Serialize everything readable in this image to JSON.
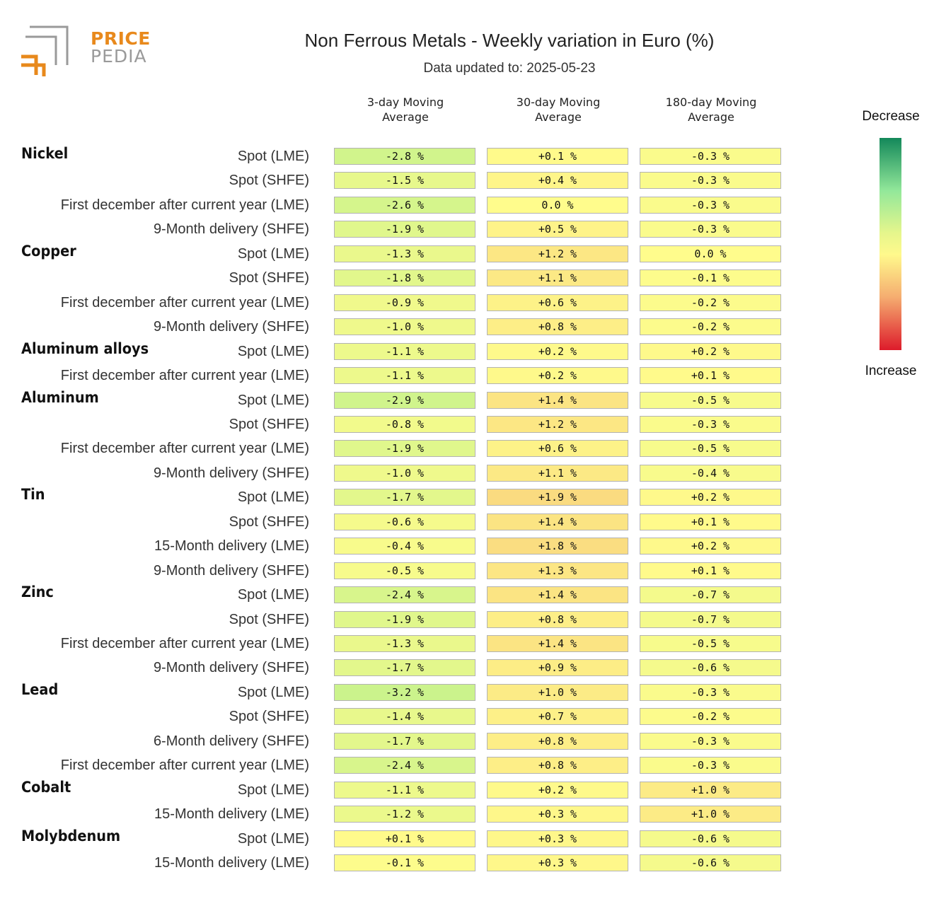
{
  "logo": {
    "line1": "PRICE",
    "line2": "PEDIA",
    "accent": "#e8891c",
    "gray": "#9a9a9a"
  },
  "title": "Non Ferrous Metals - Weekly variation in Euro (%)",
  "subtitle": "Data updated to: 2025-05-23",
  "legend": {
    "top": "Decrease",
    "bottom": "Increase"
  },
  "chart_data": {
    "type": "heatmap",
    "title": "Non Ferrous Metals - Weekly variation in Euro (%)",
    "columns": [
      "3-day Moving Average",
      "30-day Moving Average",
      "180-day Moving Average"
    ],
    "column_lines": [
      [
        "3-day Moving",
        "Average"
      ],
      [
        "30-day Moving",
        "Average"
      ],
      [
        "180-day Moving",
        "Average"
      ]
    ],
    "color_scale": {
      "min": -10,
      "max": 10,
      "low_label": "Decrease",
      "high_label": "Increase"
    },
    "groups": [
      {
        "metal": "Nickel",
        "rows": [
          {
            "label": "Spot (LME)",
            "values": [
              "-2.8 %",
              "+0.1 %",
              "-0.3 %"
            ]
          },
          {
            "label": "Spot (SHFE)",
            "values": [
              "-1.5 %",
              "+0.4 %",
              "-0.3 %"
            ]
          },
          {
            "label": "First december after current year (LME)",
            "values": [
              "-2.6 %",
              "0.0 %",
              "-0.3 %"
            ]
          },
          {
            "label": "9-Month delivery (SHFE)",
            "values": [
              "-1.9 %",
              "+0.5 %",
              "-0.3 %"
            ]
          }
        ]
      },
      {
        "metal": "Copper",
        "rows": [
          {
            "label": "Spot (LME)",
            "values": [
              "-1.3 %",
              "+1.2 %",
              "0.0 %"
            ]
          },
          {
            "label": "Spot (SHFE)",
            "values": [
              "-1.8 %",
              "+1.1 %",
              "-0.1 %"
            ]
          },
          {
            "label": "First december after current year (LME)",
            "values": [
              "-0.9 %",
              "+0.6 %",
              "-0.2 %"
            ]
          },
          {
            "label": "9-Month delivery (SHFE)",
            "values": [
              "-1.0 %",
              "+0.8 %",
              "-0.2 %"
            ]
          }
        ]
      },
      {
        "metal": "Aluminum alloys",
        "rows": [
          {
            "label": "Spot (LME)",
            "values": [
              "-1.1 %",
              "+0.2 %",
              "+0.2 %"
            ]
          },
          {
            "label": "First december after current year (LME)",
            "values": [
              "-1.1 %",
              "+0.2 %",
              "+0.1 %"
            ]
          }
        ]
      },
      {
        "metal": "Aluminum",
        "rows": [
          {
            "label": "Spot (LME)",
            "values": [
              "-2.9 %",
              "+1.4 %",
              "-0.5 %"
            ]
          },
          {
            "label": "Spot (SHFE)",
            "values": [
              "-0.8 %",
              "+1.2 %",
              "-0.3 %"
            ]
          },
          {
            "label": "First december after current year (LME)",
            "values": [
              "-1.9 %",
              "+0.6 %",
              "-0.5 %"
            ]
          },
          {
            "label": "9-Month delivery (SHFE)",
            "values": [
              "-1.0 %",
              "+1.1 %",
              "-0.4 %"
            ]
          }
        ]
      },
      {
        "metal": "Tin",
        "rows": [
          {
            "label": "Spot (LME)",
            "values": [
              "-1.7 %",
              "+1.9 %",
              "+0.2 %"
            ]
          },
          {
            "label": "Spot (SHFE)",
            "values": [
              "-0.6 %",
              "+1.4 %",
              "+0.1 %"
            ]
          },
          {
            "label": "15-Month delivery (LME)",
            "values": [
              "-0.4 %",
              "+1.8 %",
              "+0.2 %"
            ]
          },
          {
            "label": "9-Month delivery (SHFE)",
            "values": [
              "-0.5 %",
              "+1.3 %",
              "+0.1 %"
            ]
          }
        ]
      },
      {
        "metal": "Zinc",
        "rows": [
          {
            "label": "Spot (LME)",
            "values": [
              "-2.4 %",
              "+1.4 %",
              "-0.7 %"
            ]
          },
          {
            "label": "Spot (SHFE)",
            "values": [
              "-1.9 %",
              "+0.8 %",
              "-0.7 %"
            ]
          },
          {
            "label": "First december after current year (LME)",
            "values": [
              "-1.3 %",
              "+1.4 %",
              "-0.5 %"
            ]
          },
          {
            "label": "9-Month delivery (SHFE)",
            "values": [
              "-1.7 %",
              "+0.9 %",
              "-0.6 %"
            ]
          }
        ]
      },
      {
        "metal": "Lead",
        "rows": [
          {
            "label": "Spot (LME)",
            "values": [
              "-3.2 %",
              "+1.0 %",
              "-0.3 %"
            ]
          },
          {
            "label": "Spot (SHFE)",
            "values": [
              "-1.4 %",
              "+0.7 %",
              "-0.2 %"
            ]
          },
          {
            "label": "6-Month delivery (SHFE)",
            "values": [
              "-1.7 %",
              "+0.8 %",
              "-0.3 %"
            ]
          },
          {
            "label": "First december after current year (LME)",
            "values": [
              "-2.4 %",
              "+0.8 %",
              "-0.3 %"
            ]
          }
        ]
      },
      {
        "metal": "Cobalt",
        "rows": [
          {
            "label": "Spot (LME)",
            "values": [
              "-1.1 %",
              "+0.2 %",
              "+1.0 %"
            ]
          },
          {
            "label": "15-Month delivery (LME)",
            "values": [
              "-1.2 %",
              "+0.3 %",
              "+1.0 %"
            ]
          }
        ]
      },
      {
        "metal": "Molybdenum",
        "rows": [
          {
            "label": "Spot (LME)",
            "values": [
              "+0.1 %",
              "+0.3 %",
              "-0.6 %"
            ]
          },
          {
            "label": "15-Month delivery (LME)",
            "values": [
              "-0.1 %",
              "+0.3 %",
              "-0.6 %"
            ]
          }
        ]
      }
    ]
  }
}
